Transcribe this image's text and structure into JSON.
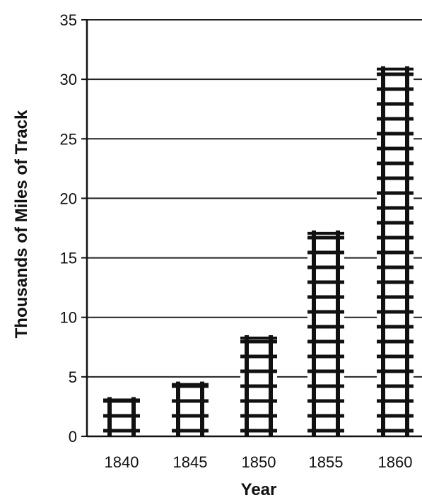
{
  "chart_data": {
    "type": "bar",
    "title": "",
    "xlabel": "Year",
    "ylabel": "Thousands of Miles of Track",
    "categories": [
      "1840",
      "1845",
      "1850",
      "1855",
      "1860"
    ],
    "values": [
      3.3,
      4.6,
      8.5,
      17.3,
      31.1
    ],
    "ylim": [
      0,
      35
    ],
    "yticks": [
      "0",
      "5",
      "10",
      "15",
      "20",
      "25",
      "30",
      "35"
    ],
    "grid": true,
    "bar_style": "railroad-track",
    "colors": {
      "ink": "#111111",
      "grid": "#222222",
      "background": "#ffffff"
    }
  }
}
